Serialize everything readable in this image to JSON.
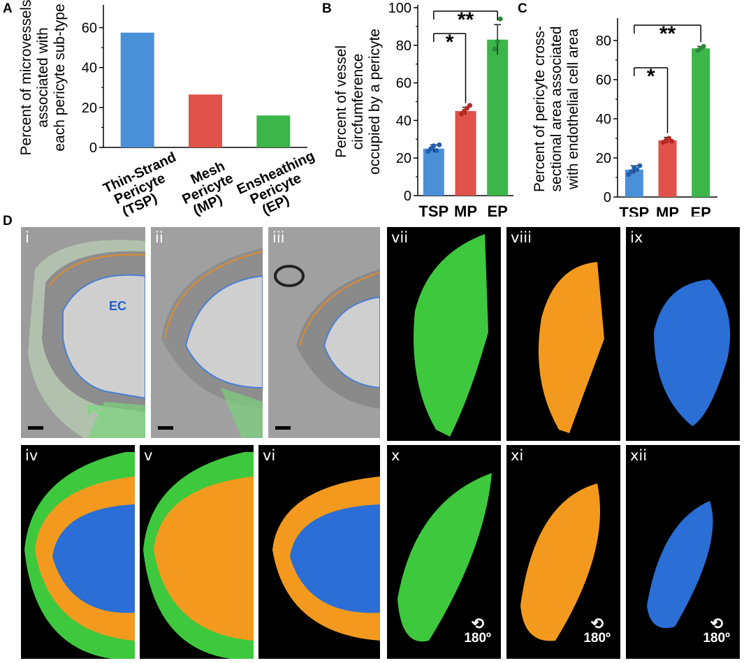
{
  "panel_labels": {
    "a": "A",
    "b": "B",
    "c": "C",
    "d": "D"
  },
  "colors": {
    "tsp": "#4a90d9",
    "mp": "#e0524a",
    "ep": "#3cb54a",
    "dot_tsp": "#1f5fb0",
    "dot_mp": "#b52a24",
    "dot_ep": "#2a8a36"
  },
  "chart_data": [
    {
      "type": "bar",
      "panel": "A",
      "ylabel": [
        "Percent of microvessels",
        "associated with",
        "each pericyte sub-type"
      ],
      "ylim": [
        0,
        70
      ],
      "yticks": [
        0,
        20,
        40,
        60
      ],
      "categories": [
        [
          "Thin-Strand",
          "Pericyte",
          "(TSP)"
        ],
        [
          "Mesh",
          "Pericyte",
          "(MP)"
        ],
        [
          "Ensheathing",
          "Pericyte",
          "(EP)"
        ]
      ],
      "values": [
        57.5,
        26.5,
        16
      ]
    },
    {
      "type": "bar",
      "panel": "B",
      "ylabel": [
        "Percent of vessel",
        "circfumference",
        "occupied by a pericyte"
      ],
      "ylim": [
        0,
        100
      ],
      "yticks": [
        0,
        20,
        40,
        60,
        80,
        100
      ],
      "categories": [
        "TSP",
        "MP",
        "EP"
      ],
      "values": [
        25,
        45,
        83
      ],
      "errors": [
        2,
        2,
        8
      ],
      "points": [
        [
          23.5,
          25,
          26.5,
          24,
          27
        ],
        [
          43.5,
          45,
          46.5,
          48
        ],
        [
          78,
          82,
          94
        ]
      ],
      "significance": [
        {
          "from": 0,
          "to": 1,
          "label": "*"
        },
        {
          "from": 0,
          "to": 2,
          "label": "**"
        }
      ]
    },
    {
      "type": "bar",
      "panel": "C",
      "ylabel": [
        "Percent of pericyte cross-",
        "sectional area associated",
        "with endothelial cell area"
      ],
      "ylim": [
        0,
        90
      ],
      "yticks": [
        0,
        20,
        40,
        60,
        80
      ],
      "categories": [
        "TSP",
        "MP",
        "EP"
      ],
      "values": [
        14,
        29,
        76
      ],
      "errors": [
        2,
        1.5,
        1
      ],
      "points": [
        [
          11.5,
          13,
          15,
          14,
          16
        ],
        [
          28,
          29,
          30,
          28.5
        ],
        [
          75,
          76,
          77
        ]
      ],
      "significance": [
        {
          "from": 0,
          "to": 1,
          "label": "*"
        },
        {
          "from": 0,
          "to": 2,
          "label": "**"
        }
      ]
    }
  ],
  "panels_d": {
    "i": "i",
    "ii": "ii",
    "iii": "iii",
    "iv": "iv",
    "v": "v",
    "vi": "vi",
    "vii": "vii",
    "viii": "viii",
    "ix": "ix",
    "x": "x",
    "xi": "xi",
    "xii": "xii",
    "ec_label": "EC",
    "pc_label": "PC",
    "rotation": "180º",
    "rotation_icon": "⟲"
  }
}
